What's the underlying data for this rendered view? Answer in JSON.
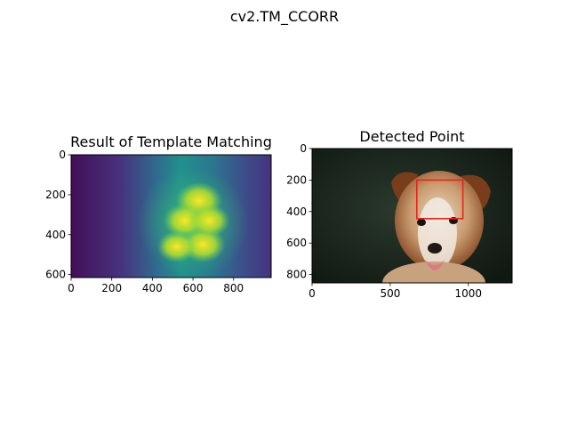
{
  "figure": {
    "suptitle": "cv2.TM_CCORR"
  },
  "chart_data": [
    {
      "type": "heatmap",
      "title": "Result of Template Matching",
      "xlabel": "",
      "ylabel": "",
      "xlim": [
        0,
        985
      ],
      "ylim": [
        615,
        0
      ],
      "xticks": [
        0,
        200,
        400,
        600,
        800
      ],
      "yticks": [
        0,
        200,
        400,
        600
      ],
      "colormap": "viridis",
      "blobs": [
        {
          "x": 630,
          "y": 230,
          "strength": 1.0
        },
        {
          "x": 560,
          "y": 330,
          "strength": 0.9
        },
        {
          "x": 650,
          "y": 450,
          "strength": 0.95
        },
        {
          "x": 520,
          "y": 460,
          "strength": 0.8
        },
        {
          "x": 680,
          "y": 330,
          "strength": 0.85
        }
      ],
      "grid": false
    },
    {
      "type": "image",
      "title": "Detected Point",
      "xlabel": "",
      "ylabel": "",
      "xlim": [
        0,
        1280
      ],
      "ylim": [
        853,
        0
      ],
      "xticks": [
        0,
        500,
        1000
      ],
      "yticks": [
        0,
        200,
        400,
        600,
        800
      ],
      "detection_box": {
        "x0": 670,
        "y0": 200,
        "x1": 965,
        "y1": 445,
        "color": "#e8241c"
      },
      "grid": false
    }
  ]
}
